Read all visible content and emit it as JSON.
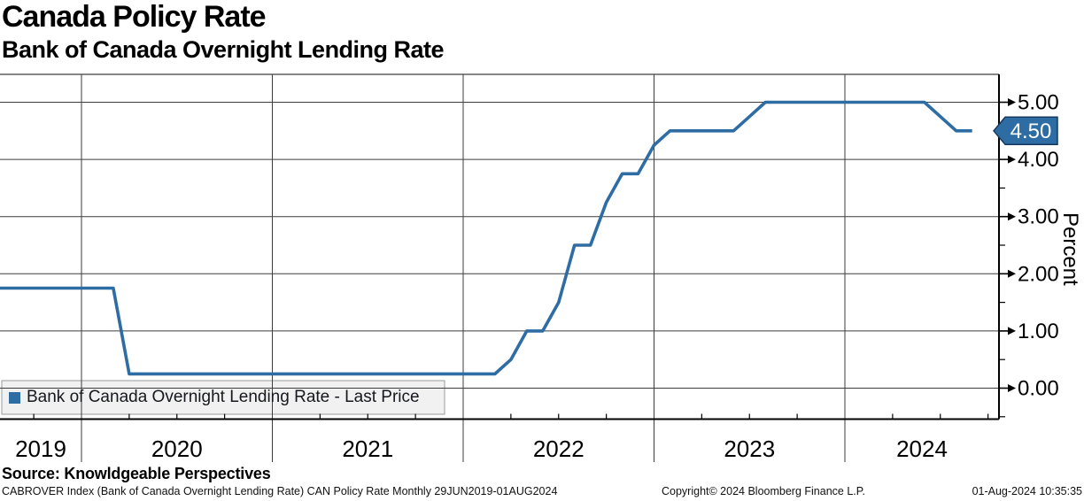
{
  "header": {
    "title": "Canada Policy Rate",
    "subtitle": "Bank of Canada Overnight Lending Rate"
  },
  "legend": {
    "label": "Bank of Canada Overnight Lending Rate - Last Price",
    "marker_color": "#2E6DA4"
  },
  "footer": {
    "source": "Source: Knowldgeable Perspectives",
    "description": "CABROVER Index (Bank of Canada Overnight Lending Rate) CAN Policy Rate  Monthly 29JUN2019-01AUG2024",
    "copyright": "Copyright© 2024 Bloomberg Finance L.P.",
    "timestamp": "01-Aug-2024 10:35:35"
  },
  "colors": {
    "line": "#2E6DA4",
    "badge_fill": "#2E6DA4",
    "badge_border": "#16385C",
    "badge_text": "#FFFFFF",
    "grid": "#3D3D3D",
    "axis": "#000000",
    "legend_bg": "#F1F1F1",
    "legend_border": "#9A9A9A"
  },
  "chart_data": {
    "type": "line",
    "title": "Canada Policy Rate",
    "subtitle": "Bank of Canada Overnight Lending Rate",
    "ylabel": "Percent",
    "xlabel": "",
    "grid": true,
    "legend_position": "bottom-left",
    "last_price_label": "4.50",
    "last_price_value": 4.5,
    "y_axis": {
      "major": [
        {
          "value": 5.0,
          "label": "5.00"
        },
        {
          "value": 4.0,
          "label": "4.00"
        },
        {
          "value": 3.0,
          "label": "3.00"
        },
        {
          "value": 2.0,
          "label": "2.00"
        },
        {
          "value": 1.0,
          "label": "1.00"
        },
        {
          "value": 0.0,
          "label": "0.00"
        }
      ],
      "minor": [
        4.5,
        3.5,
        2.5,
        1.5,
        0.5,
        -0.5
      ],
      "range_shown": [
        -0.6,
        5.45
      ]
    },
    "x_axis": {
      "year_labels": [
        "2019",
        "2020",
        "2021",
        "2022",
        "2023",
        "2024"
      ],
      "year_lines": [
        2020,
        2021,
        2022,
        2023,
        2024
      ],
      "minor_tick_interval": "quarterly",
      "range": "29JUN2019-01AUG2024"
    },
    "series": [
      {
        "name": "Bank of Canada Overnight Lending Rate - Last Price",
        "color": "#2E6DA4",
        "points": [
          [
            "2019-06",
            1.75
          ],
          [
            "2019-07",
            1.75
          ],
          [
            "2019-08",
            1.75
          ],
          [
            "2019-09",
            1.75
          ],
          [
            "2019-10",
            1.75
          ],
          [
            "2019-11",
            1.75
          ],
          [
            "2019-12",
            1.75
          ],
          [
            "2020-01",
            1.75
          ],
          [
            "2020-02",
            1.75
          ],
          [
            "2020-03",
            0.25
          ],
          [
            "2020-04",
            0.25
          ],
          [
            "2020-05",
            0.25
          ],
          [
            "2020-06",
            0.25
          ],
          [
            "2020-07",
            0.25
          ],
          [
            "2020-08",
            0.25
          ],
          [
            "2020-09",
            0.25
          ],
          [
            "2020-10",
            0.25
          ],
          [
            "2020-11",
            0.25
          ],
          [
            "2020-12",
            0.25
          ],
          [
            "2021-01",
            0.25
          ],
          [
            "2021-02",
            0.25
          ],
          [
            "2021-03",
            0.25
          ],
          [
            "2021-04",
            0.25
          ],
          [
            "2021-05",
            0.25
          ],
          [
            "2021-06",
            0.25
          ],
          [
            "2021-07",
            0.25
          ],
          [
            "2021-08",
            0.25
          ],
          [
            "2021-09",
            0.25
          ],
          [
            "2021-10",
            0.25
          ],
          [
            "2021-11",
            0.25
          ],
          [
            "2021-12",
            0.25
          ],
          [
            "2022-01",
            0.25
          ],
          [
            "2022-02",
            0.25
          ],
          [
            "2022-03",
            0.5
          ],
          [
            "2022-04",
            1.0
          ],
          [
            "2022-05",
            1.0
          ],
          [
            "2022-06",
            1.5
          ],
          [
            "2022-07",
            2.5
          ],
          [
            "2022-08",
            2.5
          ],
          [
            "2022-09",
            3.25
          ],
          [
            "2022-10",
            3.75
          ],
          [
            "2022-11",
            3.75
          ],
          [
            "2022-12",
            4.25
          ],
          [
            "2023-01",
            4.5
          ],
          [
            "2023-02",
            4.5
          ],
          [
            "2023-03",
            4.5
          ],
          [
            "2023-04",
            4.5
          ],
          [
            "2023-05",
            4.5
          ],
          [
            "2023-06",
            4.75
          ],
          [
            "2023-07",
            5.0
          ],
          [
            "2023-08",
            5.0
          ],
          [
            "2023-09",
            5.0
          ],
          [
            "2023-10",
            5.0
          ],
          [
            "2023-11",
            5.0
          ],
          [
            "2023-12",
            5.0
          ],
          [
            "2024-01",
            5.0
          ],
          [
            "2024-02",
            5.0
          ],
          [
            "2024-03",
            5.0
          ],
          [
            "2024-04",
            5.0
          ],
          [
            "2024-05",
            5.0
          ],
          [
            "2024-06",
            4.75
          ],
          [
            "2024-07",
            4.5
          ],
          [
            "2024-08",
            4.5
          ]
        ]
      }
    ]
  }
}
